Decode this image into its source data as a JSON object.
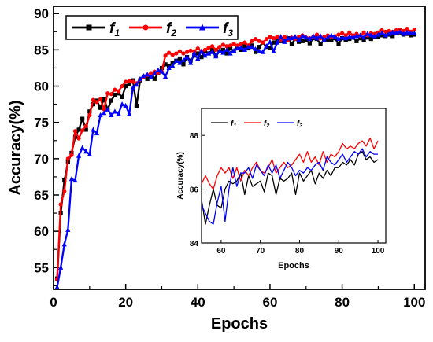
{
  "chart_data": [
    {
      "type": "line",
      "xlabel": "Epochs",
      "ylabel": "Accuracy(%)",
      "xlim": [
        0,
        103
      ],
      "ylim": [
        52,
        91
      ],
      "xticks": [
        0,
        20,
        40,
        60,
        80,
        100
      ],
      "yticks": [
        55,
        60,
        65,
        70,
        75,
        80,
        85,
        90
      ],
      "grid": false,
      "legend_position": "top-left",
      "x": [
        1,
        2,
        3,
        4,
        5,
        6,
        7,
        8,
        9,
        10,
        11,
        12,
        13,
        14,
        15,
        16,
        17,
        18,
        19,
        20,
        21,
        22,
        23,
        24,
        25,
        26,
        27,
        28,
        29,
        30,
        31,
        32,
        33,
        34,
        35,
        36,
        37,
        38,
        39,
        40,
        41,
        42,
        43,
        44,
        45,
        46,
        47,
        48,
        49,
        50,
        51,
        52,
        53,
        54,
        55,
        56,
        57,
        58,
        59,
        60,
        61,
        62,
        63,
        64,
        65,
        66,
        67,
        68,
        69,
        70,
        71,
        72,
        73,
        74,
        75,
        76,
        77,
        78,
        79,
        80,
        81,
        82,
        83,
        84,
        85,
        86,
        87,
        88,
        89,
        90,
        91,
        92,
        93,
        94,
        95,
        96,
        97,
        98,
        99,
        100
      ],
      "series": [
        {
          "name": "f1",
          "name_main": "f",
          "name_sub": "1",
          "color": "#000000",
          "marker": "square",
          "values": [
            53.5,
            62.5,
            67.0,
            69.5,
            70.8,
            73.0,
            74.0,
            75.5,
            74.0,
            76.5,
            77.5,
            78.0,
            77.0,
            78.2,
            76.8,
            78.0,
            78.8,
            79.0,
            78.5,
            80.0,
            80.3,
            80.8,
            77.3,
            80.8,
            81.3,
            81.0,
            81.5,
            81.0,
            81.8,
            82.5,
            83.0,
            82.8,
            83.2,
            83.5,
            83.8,
            83.0,
            84.0,
            83.5,
            84.2,
            84.5,
            84.0,
            84.8,
            84.5,
            85.0,
            84.3,
            84.8,
            85.0,
            84.5,
            85.2,
            84.8,
            85.3,
            85.0,
            85.5,
            85.2,
            85.6,
            84.7,
            85.4,
            86.0,
            85.4,
            85.3,
            86.0,
            86.3,
            86.2,
            86.3,
            86.6,
            85.8,
            86.5,
            86.1,
            86.2,
            86.3,
            85.9,
            86.6,
            86.5,
            85.8,
            86.4,
            86.3,
            86.4,
            86.6,
            85.8,
            86.6,
            86.3,
            86.5,
            86.7,
            86.2,
            86.6,
            86.4,
            86.7,
            86.5,
            86.8,
            86.8,
            87.0,
            86.9,
            87.1,
            86.9,
            87.3,
            87.4,
            87.1,
            87.2,
            87.0,
            87.1
          ]
        },
        {
          "name": "f2",
          "name_main": "f",
          "name_sub": "2",
          "color": "#ff0000",
          "marker": "circle",
          "values": [
            53.4,
            63.7,
            65.5,
            70.0,
            70.5,
            73.8,
            72.8,
            73.9,
            74.5,
            76.0,
            78.1,
            77.8,
            78.2,
            76.8,
            79.0,
            78.9,
            79.5,
            79.3,
            80.0,
            80.6,
            80.7,
            80.6,
            80.4,
            80.9,
            81.2,
            81.5,
            81.8,
            82.0,
            81.8,
            82.0,
            84.2,
            84.6,
            84.3,
            84.5,
            84.8,
            84.5,
            84.7,
            84.9,
            84.8,
            85.2,
            84.8,
            85.0,
            85.3,
            85.5,
            85.0,
            85.4,
            85.7,
            85.5,
            85.6,
            85.8,
            85.6,
            85.8,
            86.0,
            85.6,
            86.2,
            86.5,
            86.2,
            86.0,
            86.5,
            86.8,
            86.6,
            86.8,
            86.4,
            86.8,
            86.3,
            86.7,
            86.5,
            86.8,
            87.0,
            86.7,
            86.6,
            86.8,
            87.1,
            86.6,
            86.8,
            87.0,
            86.8,
            86.9,
            87.1,
            87.3,
            87.0,
            87.4,
            87.0,
            87.2,
            86.9,
            87.4,
            87.0,
            87.3,
            87.2,
            87.4,
            87.7,
            87.5,
            87.6,
            87.5,
            87.7,
            87.8,
            87.6,
            87.9,
            87.5,
            87.8
          ]
        },
        {
          "name": "f3",
          "name_main": "f",
          "name_sub": "3",
          "color": "#0000ff",
          "marker": "triangle",
          "values": [
            52.3,
            55.0,
            58.2,
            60.2,
            67.2,
            67.0,
            70.4,
            71.5,
            71.0,
            70.6,
            74.0,
            73.5,
            76.0,
            76.3,
            76.8,
            76.0,
            76.5,
            76.2,
            77.5,
            77.3,
            76.2,
            79.8,
            80.2,
            81.0,
            81.4,
            81.6,
            81.2,
            81.8,
            82.2,
            82.0,
            81.3,
            82.5,
            82.8,
            83.5,
            83.2,
            83.6,
            84.0,
            83.2,
            84.5,
            83.8,
            84.8,
            84.2,
            84.5,
            84.7,
            84.1,
            84.8,
            84.6,
            85.0,
            84.5,
            84.9,
            85.2,
            85.3,
            85.0,
            85.4,
            85.4,
            85.1,
            84.8,
            84.7,
            85.5,
            86.1,
            84.8,
            86.0,
            86.8,
            86.1,
            86.6,
            86.6,
            86.8,
            86.4,
            86.9,
            86.7,
            86.5,
            86.9,
            86.6,
            86.9,
            86.4,
            86.7,
            87.0,
            86.8,
            86.5,
            86.7,
            86.6,
            86.8,
            86.7,
            86.9,
            87.0,
            86.7,
            87.2,
            87.0,
            86.9,
            87.1,
            87.3,
            87.0,
            87.2,
            87.4,
            87.3,
            87.5,
            87.2,
            87.4,
            87.3,
            87.3
          ]
        }
      ]
    },
    {
      "type": "line",
      "inset": true,
      "xlabel": "Epochs",
      "ylabel": "Accuracy(%)",
      "xlim": [
        55,
        102
      ],
      "ylim": [
        84,
        89
      ],
      "xticks": [
        60,
        70,
        80,
        90,
        100
      ],
      "yticks": [
        84,
        86,
        88
      ],
      "legend_position": "top-left",
      "x_start": 55,
      "note_series": "inset shows epochs 55-100 of the same three series"
    }
  ]
}
